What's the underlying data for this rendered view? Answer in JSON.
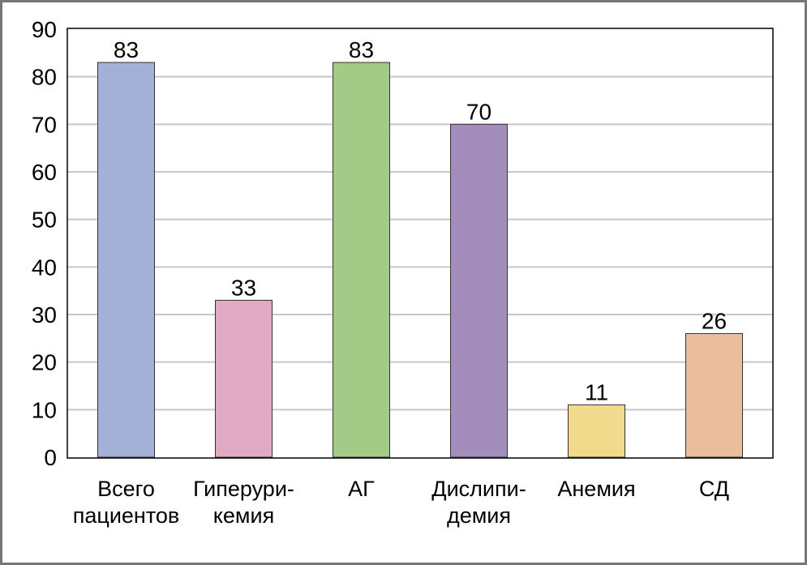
{
  "chart_data": {
    "type": "bar",
    "categories": [
      [
        "Всего",
        "пациентов"
      ],
      [
        "Гиперури-",
        "кемия"
      ],
      [
        "АГ"
      ],
      [
        "Дислипи-",
        "демия"
      ],
      [
        "Анемия"
      ],
      [
        "СД"
      ]
    ],
    "values": [
      83,
      33,
      83,
      70,
      11,
      26
    ],
    "data_labels": [
      "83",
      "33",
      "83",
      "70",
      "11",
      "26"
    ],
    "colors": [
      "#a3b1d6",
      "#e2a9c3",
      "#a3cb87",
      "#a38dbb",
      "#f1da8b",
      "#e9bd9e"
    ],
    "yticks": [
      "0",
      "10",
      "20",
      "30",
      "40",
      "50",
      "60",
      "70",
      "80",
      "90"
    ],
    "ylim": [
      0,
      90
    ],
    "grid": true,
    "title": "",
    "xlabel": "",
    "ylabel": ""
  }
}
